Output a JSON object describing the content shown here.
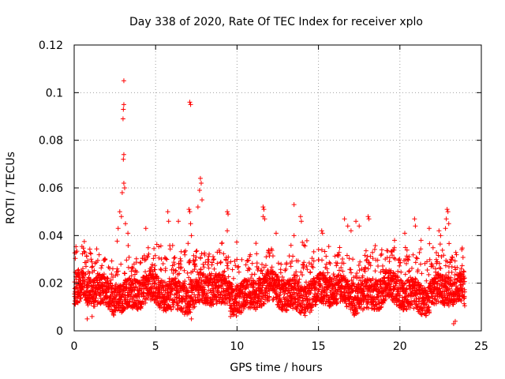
{
  "chart_data": {
    "type": "scatter",
    "title": "Day 338 of 2020, Rate Of TEC Index for receiver xplo",
    "xlabel": "GPS time / hours",
    "ylabel": "ROTI / TECUs",
    "xlim": [
      0,
      25
    ],
    "ylim": [
      0,
      0.12
    ],
    "xticks": [
      0,
      5,
      10,
      15,
      20,
      25
    ],
    "xtick_labels": [
      "0",
      "5",
      "10",
      "15",
      "20",
      "25"
    ],
    "yticks": [
      0,
      0.02,
      0.04,
      0.06,
      0.08,
      0.1,
      0.12
    ],
    "ytick_labels": [
      "0",
      "0.02",
      "0.04",
      "0.06",
      "0.08",
      "0.1",
      "0.12"
    ],
    "grid": true,
    "marker": "+",
    "color": "#ff0000",
    "series": [
      {
        "name": "ROTI",
        "bulk_band": {
          "x_range": [
            0,
            24
          ],
          "y_typical": [
            0.007,
            0.03
          ]
        },
        "points": [
          {
            "x": 3.05,
            "y": 0.105
          },
          {
            "x": 3.05,
            "y": 0.095
          },
          {
            "x": 3.02,
            "y": 0.093
          },
          {
            "x": 3.0,
            "y": 0.089
          },
          {
            "x": 3.05,
            "y": 0.074
          },
          {
            "x": 3.02,
            "y": 0.072
          },
          {
            "x": 3.05,
            "y": 0.062
          },
          {
            "x": 3.1,
            "y": 0.06
          },
          {
            "x": 2.95,
            "y": 0.058
          },
          {
            "x": 2.8,
            "y": 0.05
          },
          {
            "x": 2.9,
            "y": 0.048
          },
          {
            "x": 3.15,
            "y": 0.045
          },
          {
            "x": 2.7,
            "y": 0.043
          },
          {
            "x": 3.3,
            "y": 0.041
          },
          {
            "x": 7.1,
            "y": 0.096
          },
          {
            "x": 7.15,
            "y": 0.095
          },
          {
            "x": 7.75,
            "y": 0.064
          },
          {
            "x": 7.8,
            "y": 0.062
          },
          {
            "x": 7.7,
            "y": 0.059
          },
          {
            "x": 7.85,
            "y": 0.055
          },
          {
            "x": 7.6,
            "y": 0.052
          },
          {
            "x": 7.05,
            "y": 0.051
          },
          {
            "x": 7.1,
            "y": 0.05
          },
          {
            "x": 7.15,
            "y": 0.045
          },
          {
            "x": 7.2,
            "y": 0.04
          },
          {
            "x": 5.75,
            "y": 0.05
          },
          {
            "x": 5.8,
            "y": 0.046
          },
          {
            "x": 4.4,
            "y": 0.043
          },
          {
            "x": 6.4,
            "y": 0.046
          },
          {
            "x": 9.4,
            "y": 0.05
          },
          {
            "x": 9.45,
            "y": 0.049
          },
          {
            "x": 9.4,
            "y": 0.042
          },
          {
            "x": 11.6,
            "y": 0.052
          },
          {
            "x": 11.65,
            "y": 0.051
          },
          {
            "x": 11.6,
            "y": 0.048
          },
          {
            "x": 11.7,
            "y": 0.047
          },
          {
            "x": 12.4,
            "y": 0.041
          },
          {
            "x": 13.5,
            "y": 0.053
          },
          {
            "x": 13.9,
            "y": 0.048
          },
          {
            "x": 13.95,
            "y": 0.046
          },
          {
            "x": 13.5,
            "y": 0.04
          },
          {
            "x": 14.1,
            "y": 0.036
          },
          {
            "x": 15.2,
            "y": 0.042
          },
          {
            "x": 15.25,
            "y": 0.041
          },
          {
            "x": 16.6,
            "y": 0.047
          },
          {
            "x": 16.8,
            "y": 0.044
          },
          {
            "x": 17.0,
            "y": 0.042
          },
          {
            "x": 17.3,
            "y": 0.046
          },
          {
            "x": 17.5,
            "y": 0.044
          },
          {
            "x": 18.05,
            "y": 0.048
          },
          {
            "x": 18.1,
            "y": 0.047
          },
          {
            "x": 20.3,
            "y": 0.041
          },
          {
            "x": 20.9,
            "y": 0.047
          },
          {
            "x": 20.95,
            "y": 0.044
          },
          {
            "x": 21.3,
            "y": 0.038
          },
          {
            "x": 21.8,
            "y": 0.043
          },
          {
            "x": 22.4,
            "y": 0.042
          },
          {
            "x": 22.5,
            "y": 0.04
          },
          {
            "x": 22.9,
            "y": 0.051
          },
          {
            "x": 22.95,
            "y": 0.05
          },
          {
            "x": 22.85,
            "y": 0.047
          },
          {
            "x": 23.0,
            "y": 0.045
          },
          {
            "x": 22.8,
            "y": 0.043
          },
          {
            "x": 23.3,
            "y": 0.003
          },
          {
            "x": 23.4,
            "y": 0.004
          },
          {
            "x": 0.8,
            "y": 0.005
          },
          {
            "x": 1.1,
            "y": 0.006
          },
          {
            "x": 7.2,
            "y": 0.005
          },
          {
            "x": 9.6,
            "y": 0.006
          }
        ]
      }
    ]
  }
}
